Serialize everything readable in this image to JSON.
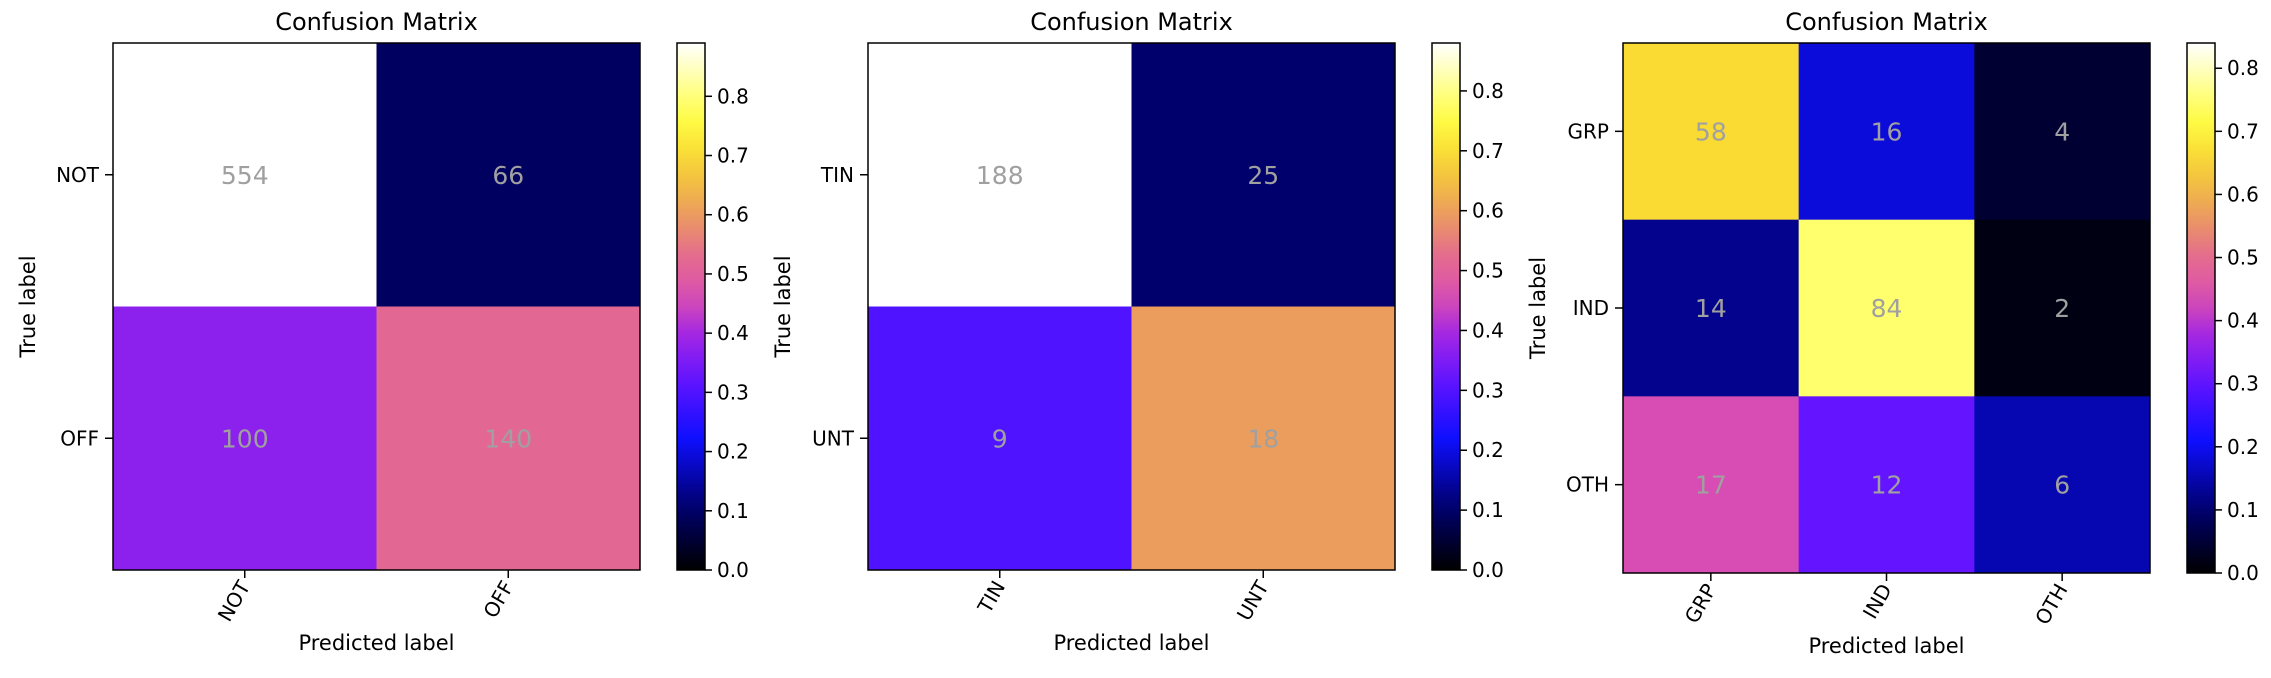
{
  "chart_data": [
    {
      "type": "heatmap",
      "title": "Confusion Matrix",
      "xlabel": "Predicted label",
      "ylabel": "True label",
      "labels": [
        "NOT",
        "OFF"
      ],
      "values": [
        [
          554,
          66
        ],
        [
          100,
          140
        ]
      ],
      "normalized": [
        [
          0.894,
          0.106
        ],
        [
          0.417,
          0.583
        ]
      ],
      "colormap": "gnuplot2",
      "colorbar_range": [
        0.0,
        0.89
      ],
      "colorbar_ticks": [
        "0.0",
        "0.1",
        "0.2",
        "0.3",
        "0.4",
        "0.5",
        "0.6",
        "0.7",
        "0.8"
      ],
      "colorbar_tick_values": [
        0.0,
        0.1,
        0.2,
        0.3,
        0.4,
        0.5,
        0.6,
        0.7,
        0.8
      ],
      "text_color": "#a0a0a0"
    },
    {
      "type": "heatmap",
      "title": "Confusion Matrix",
      "xlabel": "Predicted label",
      "ylabel": "True label",
      "labels": [
        "TIN",
        "UNT"
      ],
      "values": [
        [
          188,
          25
        ],
        [
          9,
          18
        ]
      ],
      "normalized": [
        [
          0.883,
          0.117
        ],
        [
          0.333,
          0.667
        ]
      ],
      "colormap": "gnuplot2",
      "colorbar_range": [
        0.0,
        0.88
      ],
      "colorbar_ticks": [
        "0.0",
        "0.1",
        "0.2",
        "0.3",
        "0.4",
        "0.5",
        "0.6",
        "0.7",
        "0.8"
      ],
      "colorbar_tick_values": [
        0.0,
        0.1,
        0.2,
        0.3,
        0.4,
        0.5,
        0.6,
        0.7,
        0.8
      ],
      "text_color": "#a0a0a0"
    },
    {
      "type": "heatmap",
      "title": "Confusion Matrix",
      "xlabel": "Predicted label",
      "ylabel": "True label",
      "labels": [
        "GRP",
        "IND",
        "OTH"
      ],
      "values": [
        [
          58,
          16,
          4
        ],
        [
          14,
          84,
          2
        ],
        [
          17,
          12,
          6
        ]
      ],
      "normalized": [
        [
          0.744,
          0.205,
          0.051
        ],
        [
          0.14,
          0.84,
          0.02
        ],
        [
          0.486,
          0.343,
          0.171
        ]
      ],
      "colormap": "gnuplot2",
      "colorbar_range": [
        0.0,
        0.84
      ],
      "colorbar_ticks": [
        "0.0",
        "0.1",
        "0.2",
        "0.3",
        "0.4",
        "0.5",
        "0.6",
        "0.7",
        "0.8"
      ],
      "colorbar_tick_values": [
        0.0,
        0.1,
        0.2,
        0.3,
        0.4,
        0.5,
        0.6,
        0.7,
        0.8
      ],
      "text_color": "#a0a0a0"
    }
  ]
}
